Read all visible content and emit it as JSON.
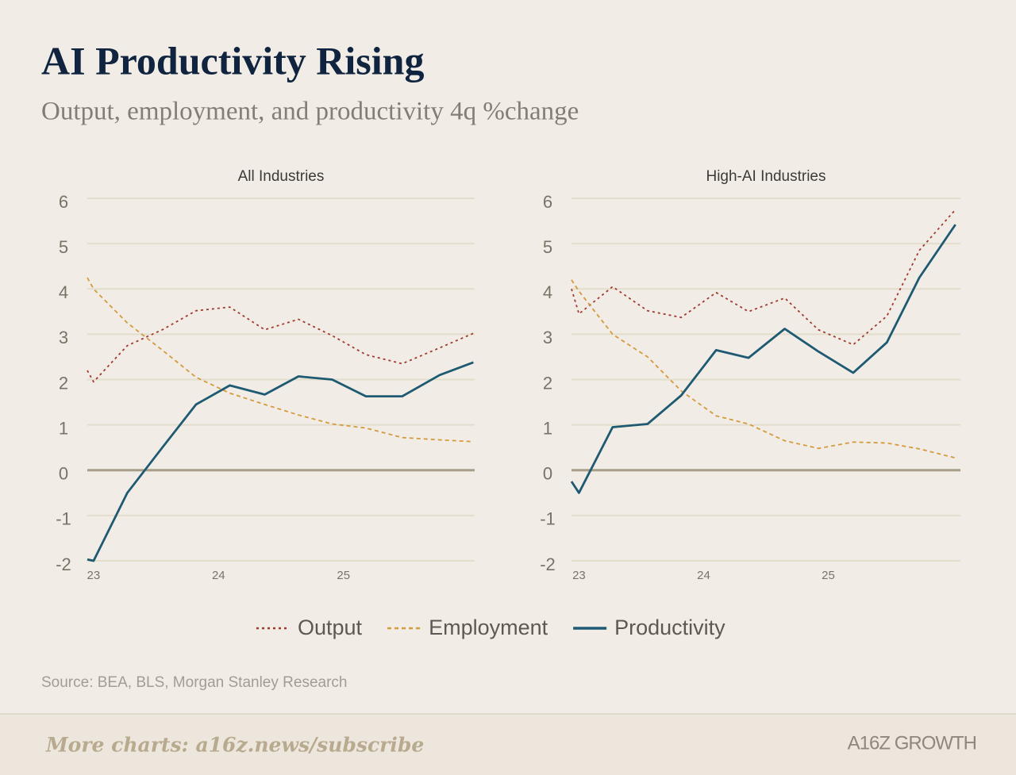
{
  "header": {
    "title": "AI Productivity Rising",
    "subtitle": "Output, employment, and productivity 4q %change"
  },
  "chart_data": [
    {
      "type": "line",
      "title": "All Industries",
      "x": [
        22.95,
        23.0,
        23.27,
        23.55,
        23.82,
        24.09,
        24.37,
        24.64,
        24.91,
        25.18,
        25.47,
        25.77,
        26.04
      ],
      "xlim": [
        22.95,
        26.05
      ],
      "xticks": [
        23,
        24,
        25
      ],
      "ylim": [
        -2,
        6
      ],
      "yticks": [
        -2,
        -1,
        0,
        1,
        2,
        3,
        4,
        5,
        6
      ],
      "grid": true,
      "series": [
        {
          "name": "Output",
          "color": "#a03a2f",
          "style": "dotted",
          "values": [
            2.2,
            1.95,
            2.75,
            3.1,
            3.52,
            3.6,
            3.1,
            3.33,
            2.97,
            2.55,
            2.35,
            2.7,
            3.02
          ]
        },
        {
          "name": "Employment",
          "color": "#d49a3e",
          "style": "dashed",
          "values": [
            4.25,
            4.0,
            3.25,
            2.65,
            2.05,
            1.7,
            1.45,
            1.22,
            1.02,
            0.93,
            0.72,
            0.67,
            0.63
          ]
        },
        {
          "name": "Productivity",
          "color": "#1e5a72",
          "style": "solid",
          "values": [
            -1.97,
            -2.0,
            -0.5,
            0.5,
            1.45,
            1.87,
            1.67,
            2.07,
            2.0,
            1.63,
            1.63,
            2.1,
            2.38
          ]
        }
      ]
    },
    {
      "type": "line",
      "title": "High-AI Industries",
      "x": [
        22.94,
        23.0,
        23.27,
        23.55,
        23.82,
        24.1,
        24.36,
        24.65,
        24.92,
        25.2,
        25.47,
        25.73,
        26.02
      ],
      "xlim": [
        22.94,
        26.06
      ],
      "xticks": [
        23,
        24,
        25
      ],
      "ylim": [
        -2,
        6
      ],
      "yticks": [
        -2,
        -1,
        0,
        1,
        2,
        3,
        4,
        5,
        6
      ],
      "grid": true,
      "series": [
        {
          "name": "Output",
          "color": "#a03a2f",
          "style": "dotted",
          "values": [
            4.0,
            3.45,
            4.05,
            3.52,
            3.37,
            3.92,
            3.5,
            3.8,
            3.1,
            2.77,
            3.4,
            4.85,
            5.75
          ]
        },
        {
          "name": "Employment",
          "color": "#d49a3e",
          "style": "dashed",
          "values": [
            4.2,
            3.95,
            3.0,
            2.5,
            1.75,
            1.2,
            1.02,
            0.65,
            0.48,
            0.62,
            0.6,
            0.47,
            0.27
          ]
        },
        {
          "name": "Productivity",
          "color": "#1e5a72",
          "style": "solid",
          "values": [
            -0.25,
            -0.5,
            0.95,
            1.02,
            1.65,
            2.65,
            2.48,
            3.12,
            2.62,
            2.15,
            2.82,
            4.25,
            5.42
          ]
        }
      ]
    }
  ],
  "source": "Source: BEA, BLS, Morgan Stanley Research",
  "footer": {
    "link": "More charts: a16z.news/subscribe",
    "logo": "A16Z GROWTH"
  }
}
